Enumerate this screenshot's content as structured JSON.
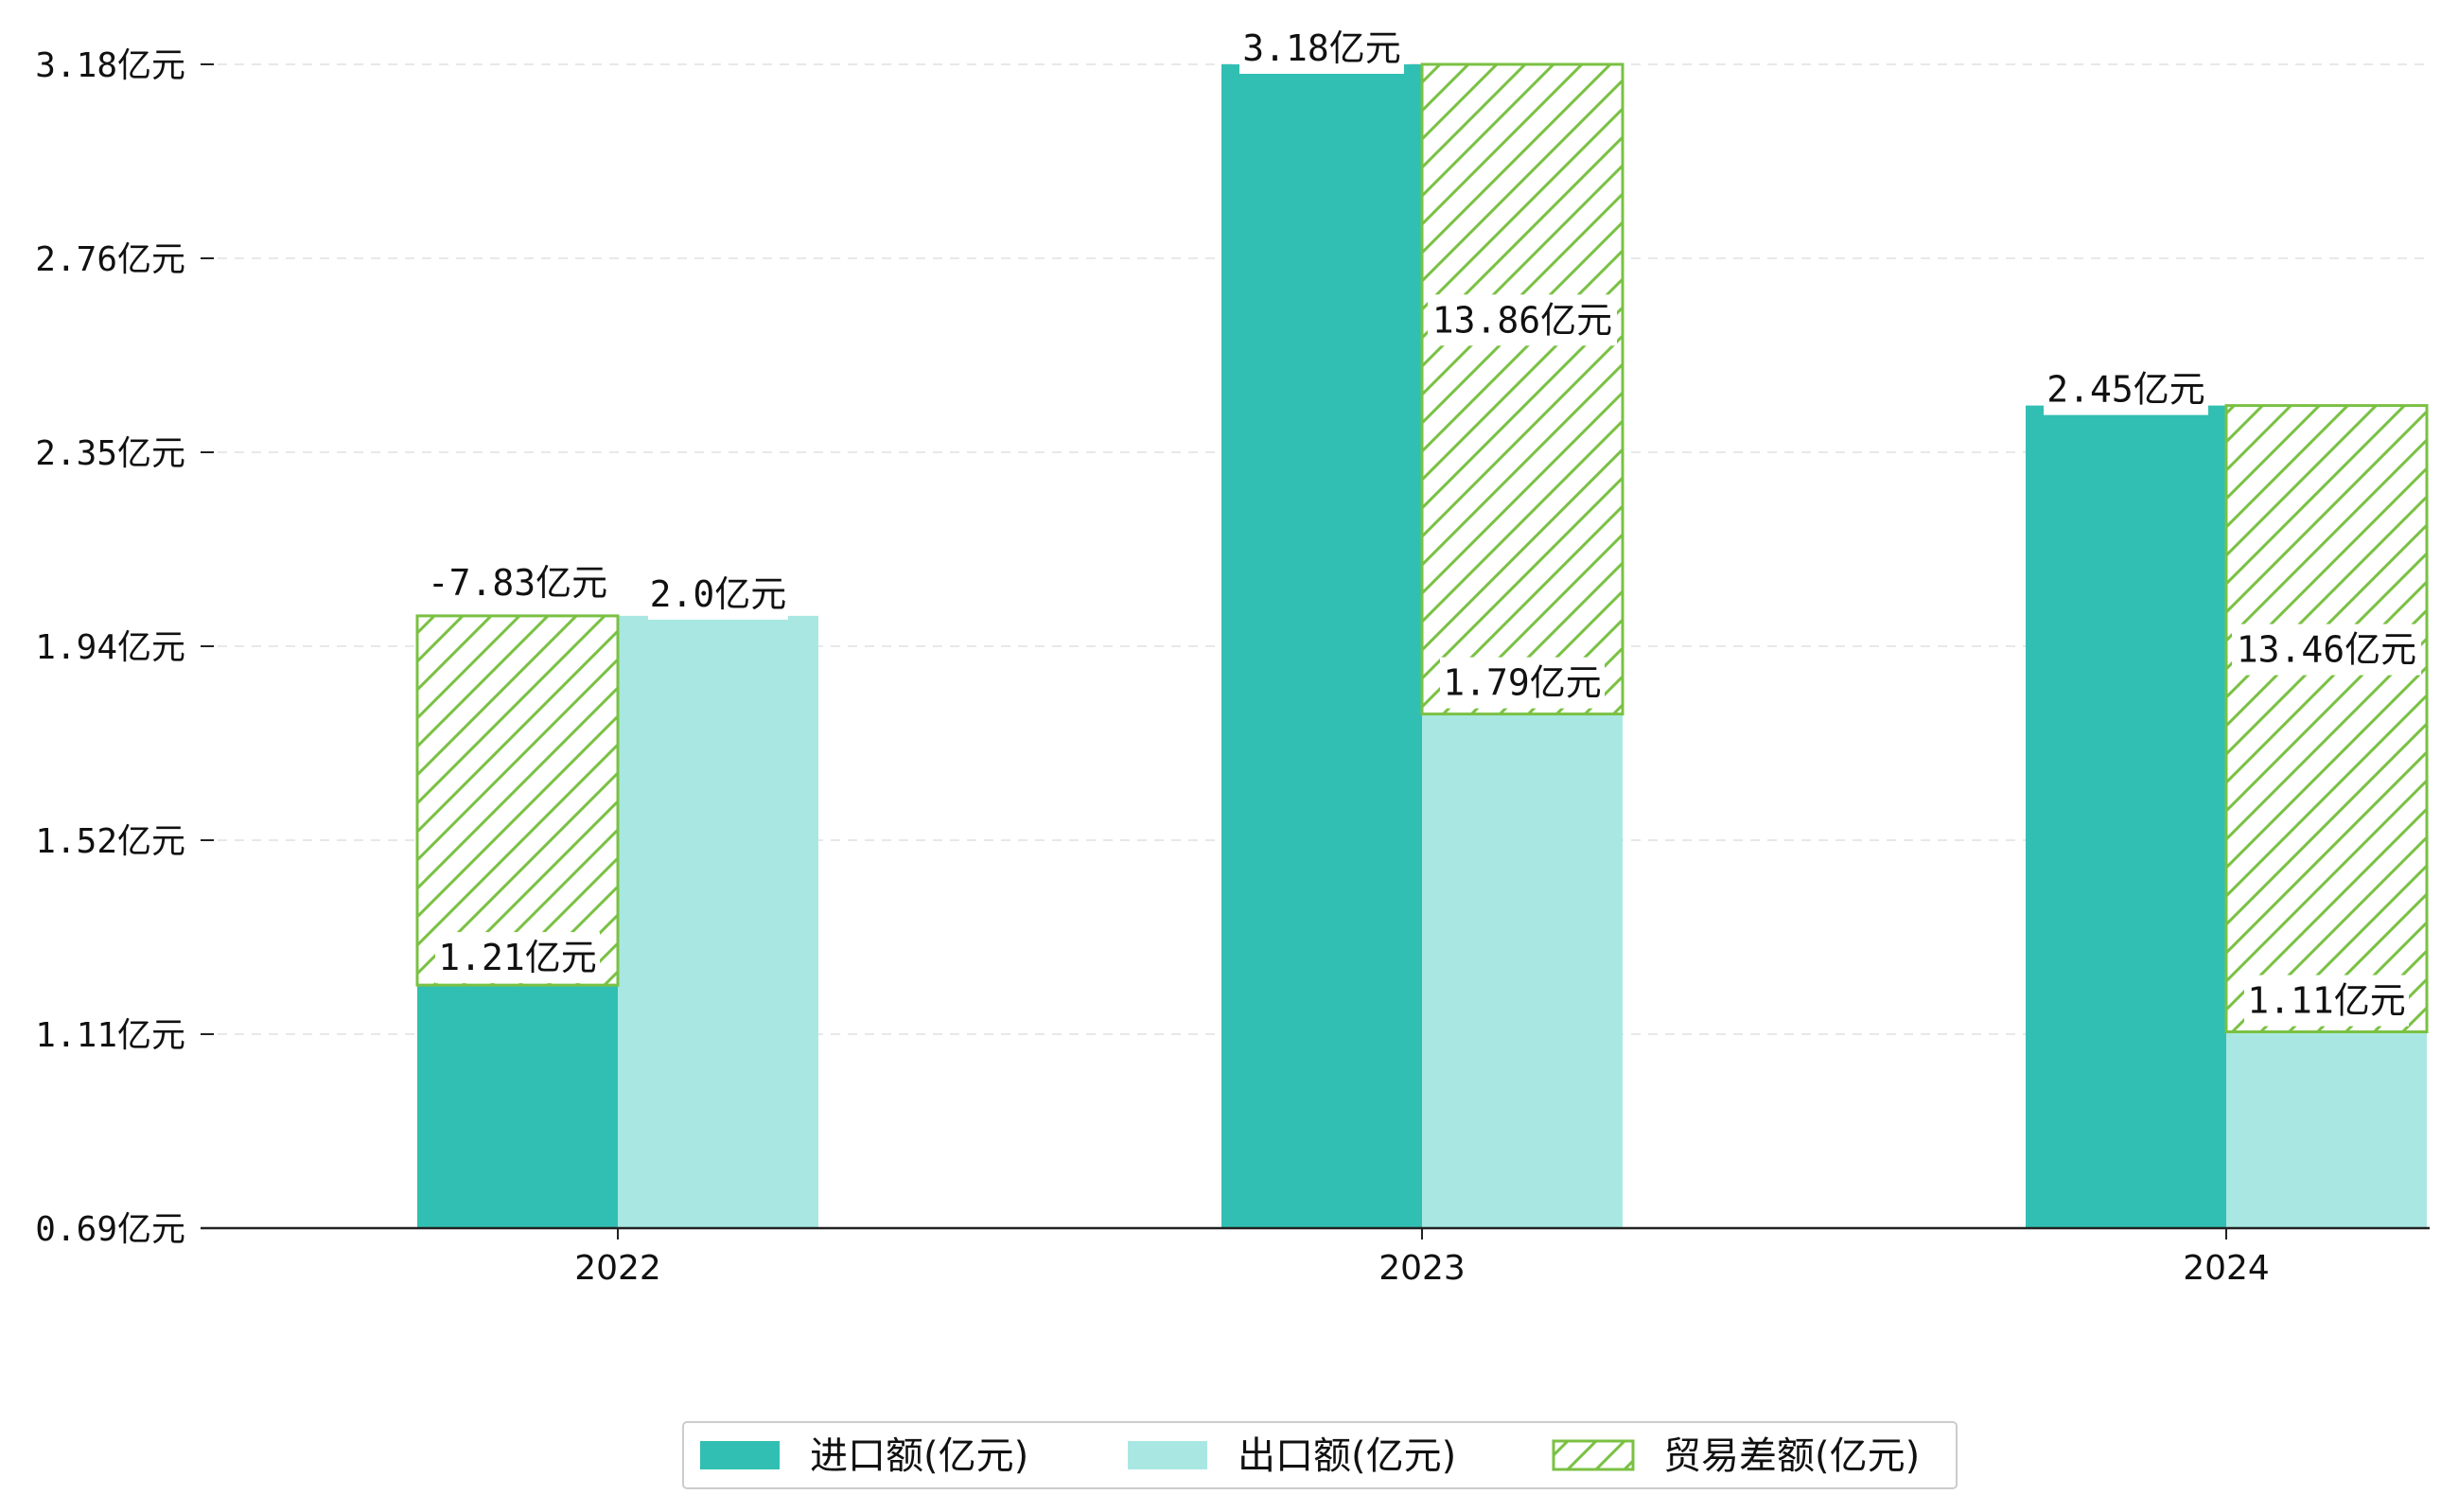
{
  "chart_data": {
    "type": "bar",
    "categories": [
      "2022",
      "2023",
      "2024"
    ],
    "series": [
      {
        "name": "进口额(亿元)",
        "values": [
          1.21,
          3.18,
          2.45
        ],
        "labels": [
          "1.21亿元",
          "3.18亿元",
          "2.45亿元"
        ],
        "color": "#31BFB3",
        "style": "solid"
      },
      {
        "name": "出口额(亿元)",
        "values": [
          2.0,
          1.79,
          1.11
        ],
        "labels": [
          "2.0亿元",
          "1.79亿元",
          "1.11亿元"
        ],
        "color": "#A9E8E2",
        "style": "solid"
      },
      {
        "name": "贸易差额(亿元)",
        "values": [
          -7.83,
          13.86,
          13.46
        ],
        "labels": [
          "-7.83亿元",
          "13.86亿元",
          "13.46亿元"
        ],
        "color": "#7AC143",
        "style": "hatched"
      }
    ],
    "y_ticks": [
      "0.69亿元",
      "1.11亿元",
      "1.52亿元",
      "1.94亿元",
      "2.35亿元",
      "2.76亿元",
      "3.18亿元"
    ],
    "ylim": [
      0.69,
      3.18
    ],
    "grid": true,
    "legend_position": "bottom-center"
  }
}
